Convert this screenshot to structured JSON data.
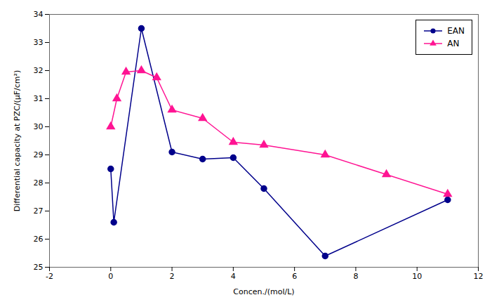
{
  "chart_data": {
    "type": "line",
    "xlabel": "Concen./(mol/L)",
    "ylabel": "Differential capacity at PZC/(μF/cm²)",
    "xlim": [
      -2,
      12
    ],
    "ylim": [
      25,
      34
    ],
    "xticks": [
      -2,
      0,
      2,
      4,
      6,
      8,
      10,
      12
    ],
    "yticks": [
      25,
      26,
      27,
      28,
      29,
      30,
      31,
      32,
      33,
      34
    ],
    "grid": false,
    "legend": "upper right",
    "series": [
      {
        "name": "EAN",
        "color": "#00008B",
        "marker": "circle",
        "line_style": "solid",
        "x": [
          0.0,
          0.1,
          1.0,
          2.0,
          3.0,
          4.0,
          5.0,
          7.0,
          11.0
        ],
        "values": [
          28.5,
          26.6,
          33.5,
          29.1,
          28.85,
          28.9,
          27.8,
          25.4,
          27.4
        ]
      },
      {
        "name": "AN",
        "color": "#FF1493",
        "marker": "triangle",
        "line_style": "solid",
        "x": [
          0.0,
          0.2,
          0.5,
          1.0,
          1.5,
          2.0,
          3.0,
          4.0,
          5.0,
          7.0,
          9.0,
          11.0
        ],
        "values": [
          30.0,
          31.0,
          31.95,
          32.0,
          31.75,
          30.6,
          30.3,
          29.45,
          29.35,
          29.0,
          28.3,
          27.6
        ]
      }
    ]
  }
}
